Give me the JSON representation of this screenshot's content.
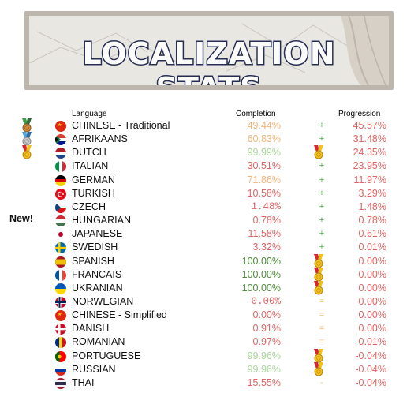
{
  "banner": {
    "title": "LOCALIZATION STATS"
  },
  "headers": {
    "language": "Language",
    "completion": "Completion",
    "progression": "Progression"
  },
  "new_label": "New!",
  "colors": {
    "green": "#4e8a3a",
    "light_green": "#a9d59a",
    "orange": "#f3b37a",
    "red": "#e06464",
    "plus": "#4aab48",
    "equals": "#f3c27a"
  },
  "rows": [
    {
      "language": "CHINESE - Traditional",
      "flag": "china",
      "completion": "49.44%",
      "progression": "45.57%",
      "sign": "+",
      "left_medal": "bronze",
      "completion_medal": ""
    },
    {
      "language": "AFRIKAANS",
      "flag": "south-africa",
      "completion": "60.83%",
      "progression": "31.48%",
      "sign": "+",
      "left_medal": "silver",
      "completion_medal": ""
    },
    {
      "language": "DUTCH",
      "flag": "netherlands",
      "completion": "99.99%",
      "progression": "24.35%",
      "sign": "",
      "left_medal": "gold",
      "completion_medal": "gold"
    },
    {
      "language": "ITALIAN",
      "flag": "italy",
      "completion": "30.51%",
      "progression": "23.95%",
      "sign": "+",
      "left_medal": "",
      "completion_medal": ""
    },
    {
      "language": "GERMAN",
      "flag": "germany",
      "completion": "71.86%",
      "progression": "11.97%",
      "sign": "+",
      "left_medal": "",
      "completion_medal": ""
    },
    {
      "language": "TURKISH",
      "flag": "turkey",
      "completion": "10.58%",
      "progression": "3.29%",
      "sign": "+",
      "left_medal": "",
      "completion_medal": ""
    },
    {
      "language": "CZECH",
      "flag": "czech",
      "completion": "1.48%",
      "progression": "1.48%",
      "sign": "+",
      "left_medal": "",
      "completion_medal": ""
    },
    {
      "language": "HUNGARIAN",
      "flag": "hungary",
      "completion": "0.78%",
      "progression": "0.78%",
      "sign": "+",
      "left_medal": "",
      "completion_medal": ""
    },
    {
      "language": "JAPANESE",
      "flag": "japan",
      "completion": "11.58%",
      "progression": "0.61%",
      "sign": "+",
      "left_medal": "",
      "completion_medal": ""
    },
    {
      "language": "SWEDISH",
      "flag": "sweden",
      "completion": "3.32%",
      "progression": "0.01%",
      "sign": "+",
      "left_medal": "",
      "completion_medal": ""
    },
    {
      "language": "SPANISH",
      "flag": "spain",
      "completion": "100.00%",
      "progression": "0.00%",
      "sign": "",
      "left_medal": "",
      "completion_medal": "gold"
    },
    {
      "language": "FRANCAIS",
      "flag": "france",
      "completion": "100.00%",
      "progression": "0.00%",
      "sign": "",
      "left_medal": "",
      "completion_medal": "gold"
    },
    {
      "language": "UKRANIAN",
      "flag": "ukraine",
      "completion": "100.00%",
      "progression": "0.00%",
      "sign": "",
      "left_medal": "",
      "completion_medal": "gold"
    },
    {
      "language": "NORWEGIAN",
      "flag": "norway",
      "completion": "0.00%",
      "progression": "0.00%",
      "sign": "=",
      "left_medal": "",
      "completion_medal": ""
    },
    {
      "language": "CHINESE - Simplified",
      "flag": "china",
      "completion": "0.00%",
      "progression": "0.00%",
      "sign": "=",
      "left_medal": "",
      "completion_medal": ""
    },
    {
      "language": "DANISH",
      "flag": "denmark",
      "completion": "0.91%",
      "progression": "0.00%",
      "sign": "=",
      "left_medal": "",
      "completion_medal": ""
    },
    {
      "language": "ROMANIAN",
      "flag": "romania",
      "completion": "0.97%",
      "progression": "-0.01%",
      "sign": "=",
      "left_medal": "",
      "completion_medal": ""
    },
    {
      "language": "PORTUGUESE",
      "flag": "portugal",
      "completion": "99.96%",
      "progression": "-0.04%",
      "sign": "",
      "left_medal": "",
      "completion_medal": "gold"
    },
    {
      "language": "RUSSIAN",
      "flag": "russia",
      "completion": "99.96%",
      "progression": "-0.04%",
      "sign": "",
      "left_medal": "",
      "completion_medal": "gold"
    },
    {
      "language": "THAI",
      "flag": "thailand",
      "completion": "15.55%",
      "progression": "-0.04%",
      "sign": "-",
      "left_medal": "",
      "completion_medal": ""
    }
  ]
}
